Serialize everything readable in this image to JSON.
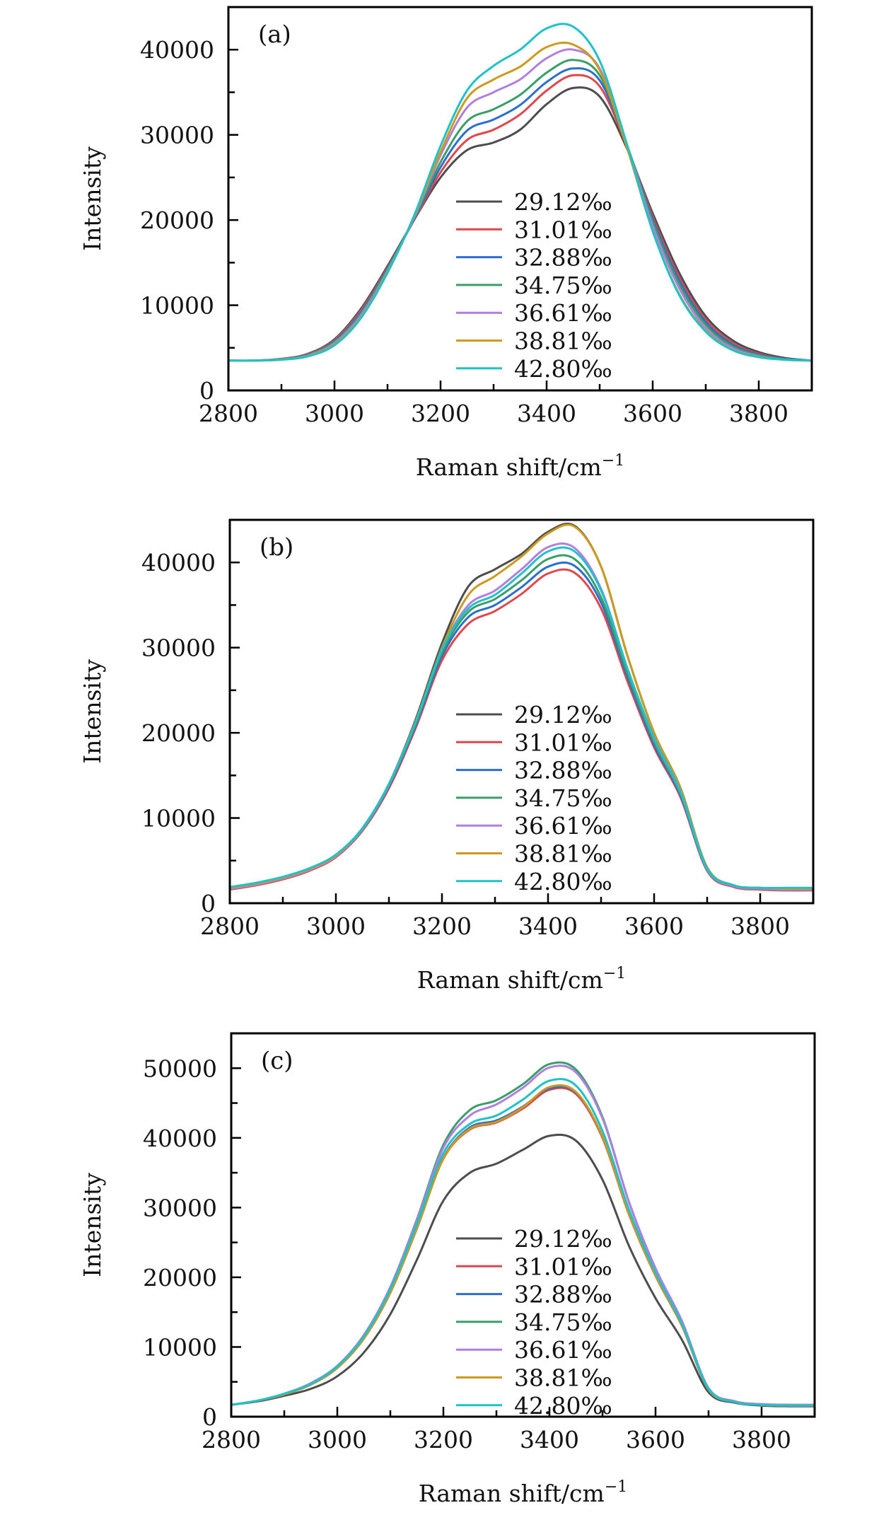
{
  "figure": {
    "legend_labels": [
      "29.12‰",
      "31.01‰",
      "32.88‰",
      "34.75‰",
      "36.61‰",
      "38.81‰",
      "42.80‰"
    ],
    "series_colors": [
      "#4d4d4d",
      "#e0474c",
      "#2a6fcf",
      "#3a9e68",
      "#b07fe0",
      "#cc9a1f",
      "#1fc2c8"
    ]
  },
  "chart_data": [
    {
      "type": "line",
      "panel_label": "(a)",
      "title": "",
      "xlabel": "Raman shift/cm",
      "xlabel_superscript": "−1",
      "ylabel": "Intensity",
      "xlim": [
        2800,
        3900
      ],
      "ylim": [
        0,
        45000
      ],
      "xticks": [
        2800,
        3000,
        3200,
        3400,
        3600,
        3800
      ],
      "xtick_labels": [
        "2800",
        "3000",
        "3200",
        "3400",
        "3600",
        "3800"
      ],
      "yticks": [
        0,
        10000,
        20000,
        30000,
        40000
      ],
      "ytick_labels": [
        "0",
        "10000",
        "20000",
        "30000",
        "40000"
      ],
      "grid": false,
      "legend_position": "center-right",
      "x": [
        2800,
        2850,
        2900,
        2950,
        3000,
        3050,
        3100,
        3150,
        3200,
        3250,
        3300,
        3350,
        3400,
        3450,
        3500,
        3550,
        3600,
        3650,
        3700,
        3750,
        3800,
        3850,
        3900
      ],
      "series": [
        {
          "name": "29.12‰",
          "values": [
            3500,
            3500,
            3700,
            4300,
            6000,
            9600,
            14600,
            20000,
            25000,
            28200,
            29100,
            30600,
            33600,
            35500,
            34500,
            28600,
            20800,
            13800,
            8700,
            5900,
            4500,
            3800,
            3500
          ]
        },
        {
          "name": "31.01‰",
          "values": [
            3500,
            3500,
            3700,
            4250,
            5900,
            9400,
            14400,
            20000,
            25600,
            29400,
            30600,
            32400,
            35200,
            37000,
            35700,
            28900,
            20400,
            13300,
            8300,
            5600,
            4300,
            3700,
            3500
          ]
        },
        {
          "name": "32.88‰",
          "values": [
            3500,
            3500,
            3680,
            4200,
            5800,
            9200,
            14300,
            20100,
            26200,
            30500,
            31800,
            33500,
            36200,
            37800,
            36400,
            29000,
            20100,
            12900,
            8000,
            5400,
            4200,
            3700,
            3500
          ]
        },
        {
          "name": "34.75‰",
          "values": [
            3500,
            3500,
            3660,
            4150,
            5700,
            9000,
            14200,
            20200,
            26800,
            31600,
            33000,
            34700,
            37300,
            38800,
            37000,
            29100,
            19800,
            12500,
            7700,
            5200,
            4100,
            3650,
            3500
          ]
        },
        {
          "name": "36.61‰",
          "values": [
            3500,
            3500,
            3640,
            4100,
            5550,
            8800,
            14000,
            20300,
            27600,
            33200,
            35000,
            36500,
            39000,
            40000,
            37800,
            29100,
            19300,
            12000,
            7300,
            5000,
            4000,
            3600,
            3500
          ]
        },
        {
          "name": "38.81‰",
          "values": [
            3500,
            3500,
            3620,
            4050,
            5400,
            8600,
            13900,
            20400,
            28000,
            34300,
            36500,
            38000,
            40300,
            40600,
            37600,
            28800,
            18700,
            11300,
            7000,
            4800,
            3950,
            3600,
            3500
          ]
        },
        {
          "name": "42.80‰",
          "values": [
            3500,
            3500,
            3600,
            4000,
            5300,
            8500,
            13800,
            20500,
            28700,
            35200,
            38100,
            40000,
            42500,
            42700,
            38700,
            29200,
            18700,
            11200,
            6900,
            4750,
            3900,
            3600,
            3500
          ]
        }
      ]
    },
    {
      "type": "line",
      "panel_label": "(b)",
      "title": "",
      "xlabel": "Raman shift/cm",
      "xlabel_superscript": "−1",
      "ylabel": "Intensity",
      "xlim": [
        2800,
        3900
      ],
      "ylim": [
        0,
        45000
      ],
      "xticks": [
        2800,
        3000,
        3200,
        3400,
        3600,
        3800
      ],
      "xtick_labels": [
        "2800",
        "3000",
        "3200",
        "3400",
        "3600",
        "3800"
      ],
      "yticks": [
        0,
        10000,
        20000,
        30000,
        40000
      ],
      "ytick_labels": [
        "0",
        "10000",
        "20000",
        "30000",
        "40000"
      ],
      "grid": false,
      "legend_position": "center-right",
      "x": [
        2800,
        2850,
        2900,
        2950,
        3000,
        3050,
        3100,
        3150,
        3200,
        3250,
        3300,
        3350,
        3400,
        3450,
        3500,
        3550,
        3600,
        3650,
        3700,
        3750,
        3800,
        3850,
        3900
      ],
      "series": [
        {
          "name": "29.12‰",
          "values": [
            1800,
            2300,
            3000,
            4000,
            5600,
            8800,
            14000,
            21500,
            30500,
            37200,
            39200,
            41000,
            43600,
            44300,
            39500,
            29000,
            20000,
            13500,
            4200,
            2100,
            1800,
            1700,
            1700
          ]
        },
        {
          "name": "31.01‰",
          "values": [
            1600,
            2100,
            2800,
            3800,
            5400,
            8500,
            13500,
            20500,
            28500,
            32800,
            34300,
            36300,
            38700,
            38800,
            34600,
            26000,
            18300,
            12400,
            3800,
            1900,
            1600,
            1500,
            1500
          ]
        },
        {
          "name": "32.88‰",
          "values": [
            1700,
            2200,
            2900,
            3900,
            5500,
            8600,
            13700,
            20800,
            29000,
            33600,
            35000,
            37100,
            39500,
            39600,
            35300,
            26500,
            18600,
            12600,
            3900,
            2000,
            1700,
            1600,
            1600
          ]
        },
        {
          "name": "34.75‰",
          "values": [
            1700,
            2200,
            2900,
            3900,
            5500,
            8600,
            13800,
            21000,
            29400,
            34200,
            35700,
            37900,
            40400,
            40400,
            35900,
            26900,
            18900,
            12800,
            3900,
            2000,
            1700,
            1600,
            1600
          ]
        },
        {
          "name": "36.61‰",
          "values": [
            1700,
            2200,
            2900,
            3900,
            5500,
            8700,
            13900,
            21200,
            29800,
            35000,
            36700,
            39200,
            41800,
            41700,
            36900,
            27500,
            19300,
            13000,
            4000,
            2000,
            1700,
            1600,
            1600
          ]
        },
        {
          "name": "38.81‰",
          "values": [
            1800,
            2300,
            3000,
            4000,
            5600,
            8800,
            14000,
            21300,
            30000,
            36200,
            38400,
            40700,
            43400,
            44200,
            39500,
            29000,
            20000,
            13500,
            4200,
            2100,
            1800,
            1700,
            1700
          ]
        },
        {
          "name": "42.80‰",
          "values": [
            1900,
            2400,
            3100,
            4100,
            5700,
            8800,
            14000,
            21200,
            29800,
            34600,
            36200,
            38700,
            41300,
            41300,
            36700,
            27500,
            19400,
            13100,
            4100,
            2100,
            1800,
            1800,
            1800
          ]
        }
      ]
    },
    {
      "type": "line",
      "panel_label": "(c)",
      "title": "",
      "xlabel": "Raman shift/cm",
      "xlabel_superscript": "−1",
      "ylabel": "Intensity",
      "xlim": [
        2800,
        3900
      ],
      "ylim": [
        0,
        55000
      ],
      "xticks": [
        2800,
        3000,
        3200,
        3400,
        3600,
        3800
      ],
      "xtick_labels": [
        "2800",
        "3000",
        "3200",
        "3400",
        "3600",
        "3800"
      ],
      "yticks": [
        0,
        10000,
        20000,
        30000,
        40000,
        50000
      ],
      "ytick_labels": [
        "0",
        "10000",
        "20000",
        "30000",
        "40000",
        "50000"
      ],
      "grid": false,
      "legend_position": "center-right",
      "x": [
        2800,
        2850,
        2900,
        2950,
        3000,
        3050,
        3100,
        3150,
        3200,
        3250,
        3300,
        3350,
        3400,
        3450,
        3500,
        3550,
        3600,
        3650,
        3700,
        3750,
        3800,
        3850,
        3900
      ],
      "series": [
        {
          "name": "29.12‰",
          "values": [
            1700,
            2200,
            3000,
            4000,
            5800,
            9200,
            14700,
            22500,
            31000,
            35000,
            36300,
            38300,
            40300,
            39600,
            34000,
            24500,
            17000,
            11000,
            3500,
            2000,
            1600,
            1500,
            1500
          ]
        },
        {
          "name": "31.01‰",
          "values": [
            1700,
            2300,
            3200,
            4600,
            7000,
            11200,
            17800,
            27000,
            37000,
            41200,
            42200,
            44200,
            46900,
            46300,
            40000,
            29000,
            20200,
            13000,
            3900,
            2100,
            1700,
            1600,
            1600
          ]
        },
        {
          "name": "32.88‰",
          "values": [
            1700,
            2300,
            3200,
            4600,
            7000,
            11200,
            17800,
            27000,
            37100,
            41500,
            42500,
            44500,
            47100,
            46500,
            40200,
            29100,
            20300,
            13100,
            3900,
            2100,
            1700,
            1600,
            1600
          ]
        },
        {
          "name": "34.75‰",
          "values": [
            1700,
            2300,
            3300,
            4800,
            7300,
            11700,
            18600,
            28300,
            39000,
            44000,
            45400,
            47700,
            50600,
            49800,
            43000,
            30800,
            21200,
            13600,
            4100,
            2200,
            1800,
            1700,
            1700
          ]
        },
        {
          "name": "36.61‰",
          "values": [
            1700,
            2300,
            3300,
            4800,
            7300,
            11700,
            18600,
            28100,
            38600,
            43200,
            44800,
            47200,
            50100,
            49400,
            42800,
            30800,
            21300,
            13700,
            4100,
            2200,
            1800,
            1700,
            1700
          ]
        },
        {
          "name": "38.81‰",
          "values": [
            1700,
            2300,
            3200,
            4600,
            7000,
            11200,
            17800,
            27000,
            37000,
            41300,
            42300,
            44400,
            47300,
            46600,
            40200,
            29100,
            20300,
            13100,
            3900,
            2100,
            1700,
            1600,
            1600
          ]
        },
        {
          "name": "42.80‰",
          "values": [
            1700,
            2300,
            3300,
            4700,
            7200,
            11500,
            18300,
            27600,
            37800,
            42000,
            43200,
            45500,
            48200,
            47500,
            41000,
            29700,
            20700,
            13300,
            4000,
            2100,
            1700,
            1600,
            1600
          ]
        }
      ]
    }
  ]
}
